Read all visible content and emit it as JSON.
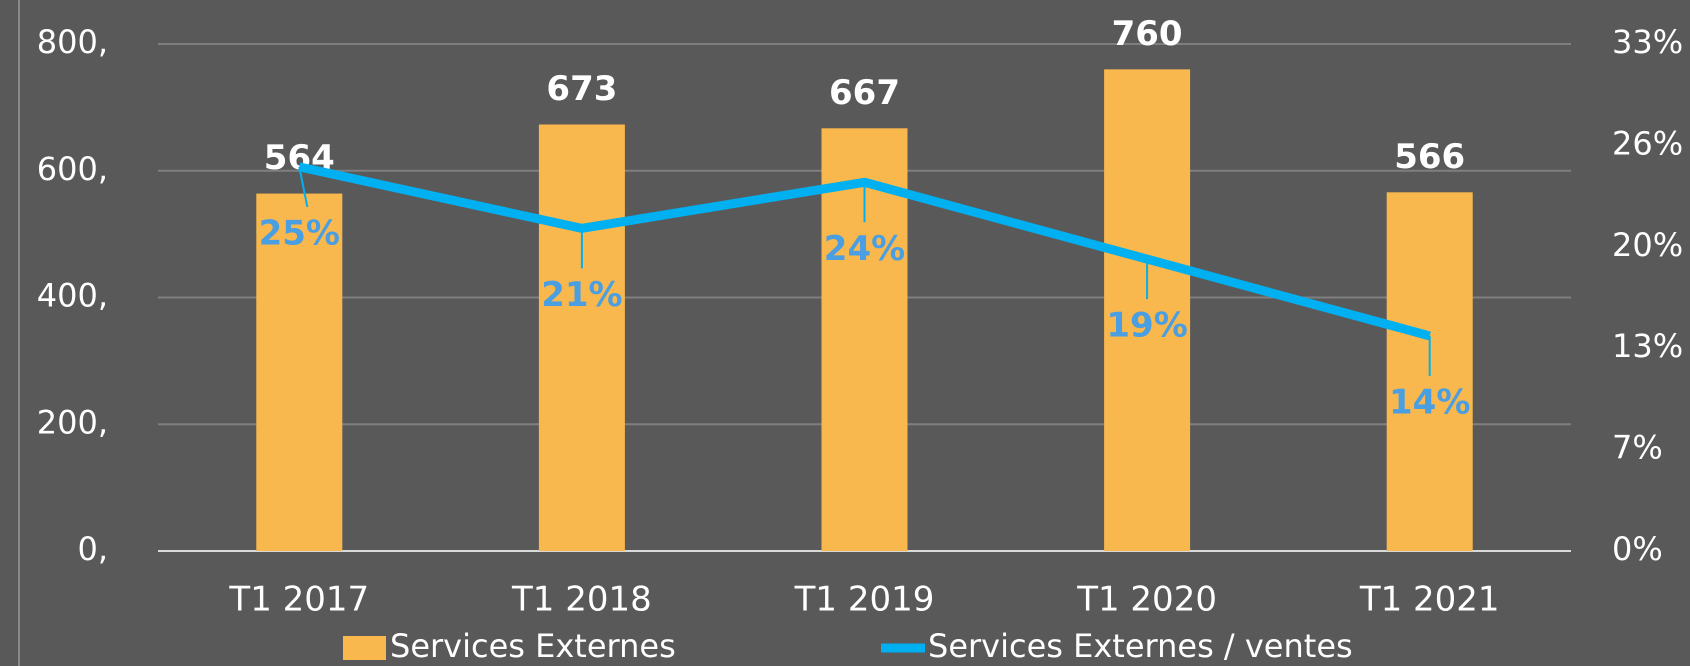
{
  "chart_data": {
    "type": "bar_line",
    "categories": [
      "T1 2017",
      "T1 2018",
      "T1 2019",
      "T1 2020",
      "T1 2021"
    ],
    "series": [
      {
        "name": "Services Externes",
        "type": "bar",
        "color": "#f8b84e",
        "values": [
          564,
          673,
          667,
          760,
          566
        ]
      },
      {
        "name": "Services Externes / ventes",
        "type": "line",
        "axis": "y2",
        "color": "#00b0f0",
        "label_color": "#4a9ee2",
        "values": [
          25,
          21,
          24,
          19,
          14
        ],
        "value_labels": [
          "25%",
          "21%",
          "24%",
          "19%",
          "14%"
        ]
      }
    ],
    "ylim": [
      0,
      800
    ],
    "yticks": [
      {
        "value": 0,
        "label": "0,"
      },
      {
        "value": 200,
        "label": "200,"
      },
      {
        "value": 400,
        "label": "400,"
      },
      {
        "value": 600,
        "label": "600,"
      },
      {
        "value": 800,
        "label": "800,"
      }
    ],
    "y2lim": [
      0,
      33
    ],
    "y2ticks": [
      {
        "value": 0,
        "label": "0%"
      },
      {
        "value": 6.6,
        "label": "7%"
      },
      {
        "value": 13.2,
        "label": "13%"
      },
      {
        "value": 19.8,
        "label": "20%"
      },
      {
        "value": 26.4,
        "label": "26%"
      },
      {
        "value": 33,
        "label": "33%"
      }
    ],
    "grid": true
  }
}
